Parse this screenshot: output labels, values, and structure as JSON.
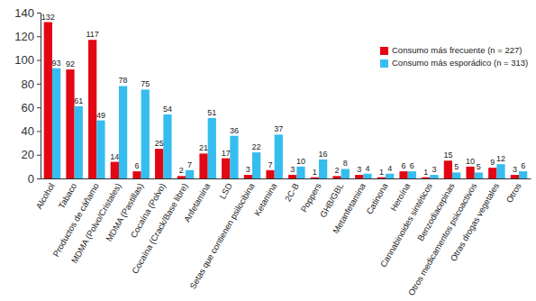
{
  "chart_data": {
    "type": "bar",
    "categories": [
      "Alcohol",
      "Tabaco",
      "Productos de cáñamo",
      "MDMA (Polvo/Cristales)",
      "MDMA (Pastillas)",
      "Cocaína (Polvo)",
      "Cocaína (Crack/Base libre)",
      "Anfetamina",
      "LSD",
      "Setas que contienen psilocibina",
      "Ketamina",
      "2C-B",
      "Poppers",
      "GHB/GBL",
      "Metanfetamina",
      "Catinona",
      "Heroína",
      "Cannabinoides sintéticos",
      "Benzodiacepinas",
      "Otros medicamentos psicoactivos",
      "Otras drogas vegetales",
      "Otros"
    ],
    "series": [
      {
        "name": "Consumo más frecuente (n = 227)",
        "color": "#e30613",
        "values": [
          132,
          92,
          117,
          14,
          6,
          25,
          2,
          21,
          17,
          3,
          7,
          3,
          1,
          2,
          3,
          1,
          6,
          1,
          15,
          10,
          9,
          3
        ]
      },
      {
        "name": "Consumo más esporádico (n = 313)",
        "color": "#35bdef",
        "values": [
          93,
          61,
          49,
          78,
          75,
          54,
          7,
          51,
          36,
          22,
          37,
          10,
          16,
          8,
          4,
          4,
          6,
          3,
          5,
          5,
          12,
          6
        ]
      }
    ],
    "ylim": [
      0,
      140
    ],
    "yticks": [
      0,
      20,
      40,
      60,
      80,
      100,
      120,
      140
    ],
    "grid": false,
    "legend": "top-right",
    "data_labels": true
  }
}
